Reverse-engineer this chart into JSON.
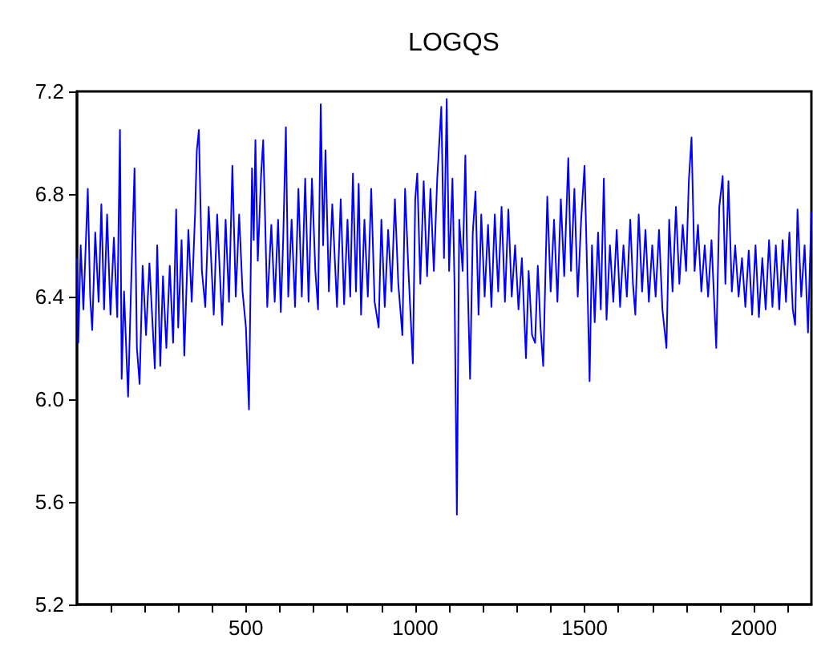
{
  "chart_data": {
    "type": "line",
    "title": "LOGQS",
    "xlim": [
      1,
      2170
    ],
    "ylim": [
      5.2,
      7.2
    ],
    "xticks": [
      {
        "value": 100,
        "label": null
      },
      {
        "value": 200,
        "label": null
      },
      {
        "value": 300,
        "label": null
      },
      {
        "value": 400,
        "label": null
      },
      500,
      {
        "value": 600,
        "label": null
      },
      {
        "value": 700,
        "label": null
      },
      {
        "value": 800,
        "label": null
      },
      {
        "value": 900,
        "label": null
      },
      1000,
      {
        "value": 1100,
        "label": null
      },
      {
        "value": 1200,
        "label": null
      },
      {
        "value": 1300,
        "label": null
      },
      {
        "value": 1400,
        "label": null
      },
      1500,
      {
        "value": 1600,
        "label": null
      },
      {
        "value": 1700,
        "label": null
      },
      {
        "value": 1800,
        "label": null
      },
      {
        "value": 1900,
        "label": null
      },
      2000,
      {
        "value": 2100,
        "label": null
      }
    ],
    "yticks": [
      5.2,
      5.6,
      {
        "value": 6.0,
        "label": "6.0"
      },
      6.4,
      6.8,
      7.2
    ],
    "grid": false,
    "marker": "none",
    "line_style": "solid",
    "series": [
      {
        "color": "#0000ff",
        "x": [
          1,
          5,
          12,
          20,
          33,
          40,
          46,
          55,
          65,
          73,
          81,
          90,
          100,
          110,
          120,
          128,
          133,
          140,
          152,
          160,
          171,
          178,
          186,
          195,
          205,
          215,
          231,
          238,
          247,
          255,
          265,
          275,
          285,
          294,
          300,
          310,
          318,
          330,
          340,
          350,
          355,
          361,
          370,
          380,
          390,
          405,
          415,
          430,
          440,
          450,
          460,
          470,
          480,
          490,
          500,
          509,
          518,
          523,
          528,
          535,
          545,
          551,
          563,
          575,
          585,
          595,
          603,
          610,
          618,
          625,
          635,
          645,
          655,
          665,
          675,
          685,
          695,
          705,
          713,
          721,
          728,
          735,
          745,
          755,
          769,
          780,
          790,
          800,
          808,
          816,
          825,
          833,
          840,
          850,
          860,
          870,
          880,
          892,
          900,
          910,
          920,
          930,
          940,
          950,
          962,
          970,
          980,
          993,
          1000,
          1006,
          1015,
          1025,
          1035,
          1045,
          1055,
          1065,
          1077,
          1085,
          1093,
          1100,
          1110,
          1116,
          1123,
          1130,
          1140,
          1148,
          1155,
          1162,
          1170,
          1178,
          1187,
          1195,
          1205,
          1215,
          1225,
          1235,
          1245,
          1255,
          1265,
          1275,
          1285,
          1295,
          1305,
          1315,
          1327,
          1335,
          1345,
          1354,
          1362,
          1370,
          1378,
          1390,
          1400,
          1410,
          1420,
          1430,
          1440,
          1452,
          1460,
          1470,
          1480,
          1490,
          1500,
          1508,
          1515,
          1522,
          1530,
          1540,
          1548,
          1557,
          1565,
          1575,
          1585,
          1595,
          1605,
          1615,
          1625,
          1635,
          1643,
          1650,
          1660,
          1670,
          1680,
          1690,
          1700,
          1710,
          1720,
          1730,
          1742,
          1750,
          1760,
          1770,
          1780,
          1790,
          1800,
          1808,
          1816,
          1825,
          1835,
          1845,
          1855,
          1865,
          1875,
          1889,
          1898,
          1908,
          1916,
          1925,
          1935,
          1945,
          1955,
          1965,
          1975,
          1985,
          1995,
          2005,
          2015,
          2025,
          2035,
          2045,
          2055,
          2065,
          2075,
          2085,
          2095,
          2105,
          2115,
          2122,
          2129,
          2140,
          2150,
          2160,
          2170
        ],
        "values": [
          6.55,
          6.22,
          6.6,
          6.35,
          6.82,
          6.4,
          6.27,
          6.65,
          6.38,
          6.76,
          6.35,
          6.72,
          6.33,
          6.63,
          6.32,
          7.05,
          6.08,
          6.42,
          6.01,
          6.4,
          6.9,
          6.2,
          6.06,
          6.52,
          6.25,
          6.53,
          6.12,
          6.6,
          6.13,
          6.48,
          6.2,
          6.52,
          6.22,
          6.74,
          6.28,
          6.62,
          6.17,
          6.66,
          6.38,
          6.73,
          6.97,
          7.05,
          6.5,
          6.36,
          6.75,
          6.33,
          6.72,
          6.29,
          6.7,
          6.38,
          6.91,
          6.4,
          6.72,
          6.42,
          6.28,
          5.96,
          6.9,
          6.62,
          7.01,
          6.54,
          6.88,
          7.01,
          6.36,
          6.68,
          6.38,
          6.7,
          6.34,
          6.62,
          7.06,
          6.4,
          6.7,
          6.36,
          6.82,
          6.4,
          6.86,
          6.38,
          6.86,
          6.5,
          6.35,
          7.15,
          6.6,
          6.97,
          6.42,
          6.76,
          6.36,
          6.78,
          6.37,
          6.7,
          6.4,
          6.88,
          6.42,
          6.84,
          6.33,
          6.7,
          6.4,
          6.82,
          6.38,
          6.28,
          6.7,
          6.36,
          6.66,
          6.42,
          6.78,
          6.45,
          6.25,
          6.82,
          6.5,
          6.14,
          6.78,
          6.88,
          6.45,
          6.85,
          6.48,
          6.82,
          6.5,
          6.86,
          7.14,
          6.55,
          7.17,
          6.5,
          6.86,
          6.45,
          5.55,
          6.7,
          6.5,
          6.95,
          6.45,
          6.08,
          6.65,
          6.81,
          6.33,
          6.72,
          6.4,
          6.68,
          6.36,
          6.72,
          6.42,
          6.75,
          6.38,
          6.74,
          6.4,
          6.6,
          6.35,
          6.55,
          6.16,
          6.5,
          6.25,
          6.22,
          6.52,
          6.28,
          6.13,
          6.79,
          6.42,
          6.7,
          6.38,
          6.78,
          6.48,
          6.94,
          6.5,
          6.82,
          6.4,
          6.7,
          6.91,
          6.48,
          6.07,
          6.6,
          6.3,
          6.65,
          6.35,
          6.86,
          6.31,
          6.6,
          6.38,
          6.66,
          6.36,
          6.6,
          6.4,
          6.7,
          6.45,
          6.33,
          6.72,
          6.42,
          6.66,
          6.38,
          6.6,
          6.4,
          6.66,
          6.35,
          6.2,
          6.7,
          6.42,
          6.75,
          6.45,
          6.68,
          6.5,
          6.85,
          7.02,
          6.5,
          6.68,
          6.42,
          6.6,
          6.4,
          6.62,
          6.2,
          6.75,
          6.87,
          6.45,
          6.85,
          6.42,
          6.6,
          6.4,
          6.55,
          6.36,
          6.58,
          6.33,
          6.6,
          6.32,
          6.55,
          6.35,
          6.62,
          6.36,
          6.6,
          6.35,
          6.62,
          6.38,
          6.65,
          6.35,
          6.29,
          6.74,
          6.4,
          6.6,
          6.26,
          6.73
        ]
      }
    ]
  }
}
